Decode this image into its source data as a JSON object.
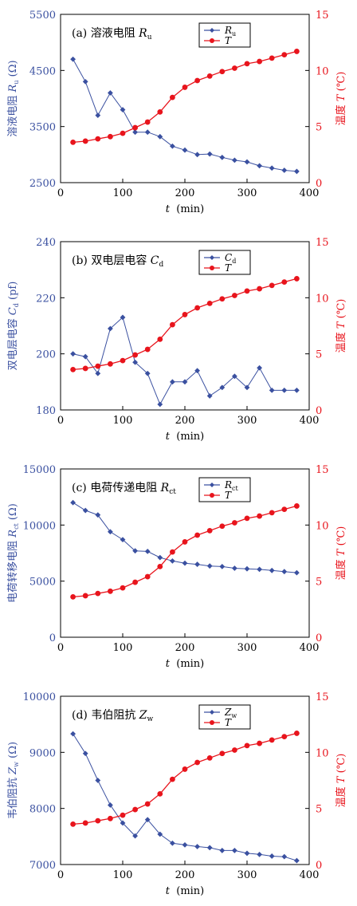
{
  "colors": {
    "left_series": "#3a50a0",
    "temperature": "#e8141c",
    "axis": "#000000"
  },
  "icons": {
    "left_marker": "diamond",
    "temperature_marker": "circle"
  },
  "chart_data": [
    {
      "type": "line",
      "panel_label": "(a) 溶液电阻",
      "panel_symbol": "R",
      "panel_sub": "u",
      "x": [
        20,
        40,
        60,
        80,
        100,
        120,
        140,
        160,
        180,
        200,
        220,
        240,
        260,
        280,
        300,
        320,
        340,
        360,
        380
      ],
      "xlabel": "t",
      "xunit": "(min)",
      "xlim": [
        0,
        400
      ],
      "xticks": [
        0,
        100,
        200,
        300,
        400
      ],
      "ylabel": "溶液电阻",
      "ylabel_symbol": "R",
      "ylabel_sub": "u",
      "yunit": "(Ω)",
      "ylim": [
        2500,
        5500
      ],
      "yticks": [
        2500,
        3500,
        4500,
        5500
      ],
      "y2label": "温度",
      "y2symbol": "T",
      "y2unit": "(℃)",
      "y2lim": [
        0,
        15
      ],
      "y2ticks": [
        0,
        5,
        10,
        15
      ],
      "series": [
        {
          "name": "R",
          "sub": "u",
          "axis": "left",
          "values": [
            4700,
            4300,
            3700,
            4100,
            3800,
            3400,
            3400,
            3320,
            3150,
            3080,
            3000,
            3010,
            2950,
            2900,
            2870,
            2800,
            2760,
            2720,
            2700
          ]
        },
        {
          "name": "T",
          "sub": "",
          "axis": "right",
          "values": [
            3.6,
            3.7,
            3.9,
            4.1,
            4.4,
            4.9,
            5.4,
            6.3,
            7.6,
            8.5,
            9.1,
            9.5,
            9.9,
            10.2,
            10.6,
            10.8,
            11.1,
            11.4,
            11.7
          ]
        }
      ]
    },
    {
      "type": "line",
      "panel_label": "(b) 双电层电容",
      "panel_symbol": "C",
      "panel_sub": "d",
      "x": [
        20,
        40,
        60,
        80,
        100,
        120,
        140,
        160,
        180,
        200,
        220,
        240,
        260,
        280,
        300,
        320,
        340,
        360,
        380
      ],
      "xlabel": "t",
      "xunit": "(min)",
      "xlim": [
        0,
        400
      ],
      "xticks": [
        0,
        100,
        200,
        300,
        400
      ],
      "ylabel": "双电层电容",
      "ylabel_symbol": "C",
      "ylabel_sub": "d",
      "yunit": "(pf)",
      "ylim": [
        180,
        240
      ],
      "yticks": [
        180,
        200,
        220,
        240
      ],
      "y2label": "温度",
      "y2symbol": "T",
      "y2unit": "(℃)",
      "y2lim": [
        0,
        15
      ],
      "y2ticks": [
        0,
        5,
        10,
        15
      ],
      "series": [
        {
          "name": "C",
          "sub": "d",
          "axis": "left",
          "values": [
            200,
            199,
            193,
            209,
            213,
            197,
            193,
            182,
            190,
            190,
            194,
            185,
            188,
            192,
            188,
            195,
            187,
            187,
            187
          ]
        },
        {
          "name": "T",
          "sub": "",
          "axis": "right",
          "values": [
            3.6,
            3.7,
            3.9,
            4.1,
            4.4,
            4.9,
            5.4,
            6.3,
            7.6,
            8.5,
            9.1,
            9.5,
            9.9,
            10.2,
            10.6,
            10.8,
            11.1,
            11.4,
            11.7
          ]
        }
      ]
    },
    {
      "type": "line",
      "panel_label": "(c) 电荷传递电阻",
      "panel_symbol": "R",
      "panel_sub": "ct",
      "x": [
        20,
        40,
        60,
        80,
        100,
        120,
        140,
        160,
        180,
        200,
        220,
        240,
        260,
        280,
        300,
        320,
        340,
        360,
        380
      ],
      "xlabel": "t",
      "xunit": "(min)",
      "xlim": [
        0,
        400
      ],
      "xticks": [
        0,
        100,
        200,
        300,
        400
      ],
      "ylabel": "电荷转移电阻",
      "ylabel_symbol": "R",
      "ylabel_sub": "ct",
      "yunit": "(Ω)",
      "ylim": [
        0,
        15000
      ],
      "yticks": [
        0,
        5000,
        10000,
        15000
      ],
      "y2label": "温度",
      "y2symbol": "T",
      "y2unit": "(℃)",
      "y2lim": [
        0,
        15
      ],
      "y2ticks": [
        0,
        5,
        10,
        15
      ],
      "series": [
        {
          "name": "R",
          "sub": "ct",
          "axis": "left",
          "values": [
            12000,
            11300,
            10900,
            9400,
            8700,
            7700,
            7650,
            7100,
            6800,
            6600,
            6500,
            6350,
            6300,
            6150,
            6100,
            6050,
            5950,
            5850,
            5750
          ]
        },
        {
          "name": "T",
          "sub": "",
          "axis": "right",
          "values": [
            3.6,
            3.7,
            3.9,
            4.1,
            4.4,
            4.9,
            5.4,
            6.3,
            7.6,
            8.5,
            9.1,
            9.5,
            9.9,
            10.2,
            10.6,
            10.8,
            11.1,
            11.4,
            11.7
          ]
        }
      ]
    },
    {
      "type": "line",
      "panel_label": "(d) 韦伯阻抗",
      "panel_symbol": "Z",
      "panel_sub": "w",
      "x": [
        20,
        40,
        60,
        80,
        100,
        120,
        140,
        160,
        180,
        200,
        220,
        240,
        260,
        280,
        300,
        320,
        340,
        360,
        380
      ],
      "xlabel": "t",
      "xunit": "(min)",
      "xlim": [
        0,
        400
      ],
      "xticks": [
        0,
        100,
        200,
        300,
        400
      ],
      "ylabel": "韦伯阻抗",
      "ylabel_symbol": "Z",
      "ylabel_sub": "w",
      "yunit": "(Ω)",
      "ylim": [
        7000,
        10000
      ],
      "yticks": [
        7000,
        8000,
        9000,
        10000
      ],
      "y2label": "温度",
      "y2symbol": "T",
      "y2unit": "(℃)",
      "y2lim": [
        0,
        15
      ],
      "y2ticks": [
        0,
        5,
        10,
        15
      ],
      "series": [
        {
          "name": "Z",
          "sub": "w",
          "axis": "left",
          "values": [
            9330,
            8980,
            8500,
            8060,
            7740,
            7510,
            7800,
            7540,
            7380,
            7350,
            7320,
            7300,
            7250,
            7250,
            7200,
            7180,
            7150,
            7140,
            7070
          ]
        },
        {
          "name": "T",
          "sub": "",
          "axis": "right",
          "values": [
            3.6,
            3.7,
            3.9,
            4.1,
            4.4,
            4.9,
            5.4,
            6.3,
            7.6,
            8.5,
            9.1,
            9.5,
            9.9,
            10.2,
            10.6,
            10.8,
            11.1,
            11.4,
            11.7
          ]
        }
      ]
    }
  ]
}
